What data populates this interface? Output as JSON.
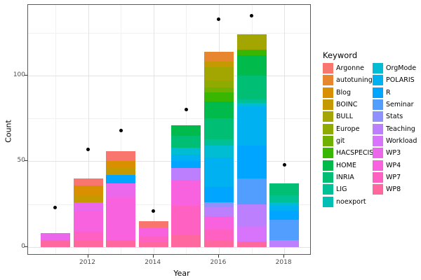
{
  "chart_data": {
    "type": "bar",
    "variant": "stacked-bars-with-points",
    "title": "",
    "xlabel": "Year",
    "ylabel": "Count",
    "legend_title": "Keyword",
    "legend_position": "right",
    "grid": true,
    "categories": [
      2011,
      2012,
      2013,
      2014,
      2015,
      2016,
      2017,
      2018
    ],
    "x_tick_years": [
      2012,
      2014,
      2016,
      2018
    ],
    "y_ticks": [
      0,
      50,
      100
    ],
    "y_minor_ticks": [
      25,
      75,
      125
    ],
    "ylim": [
      0,
      141
    ],
    "bar_totals": [
      8,
      40,
      56,
      15,
      71,
      114,
      124,
      37
    ],
    "points": {
      "name": "count-dots",
      "color": "#000000",
      "values": [
        23,
        57,
        68,
        21,
        80,
        133,
        135,
        48
      ]
    },
    "series": [
      {
        "name": "Argonne",
        "color": "#F8766D",
        "values": [
          0,
          4,
          6,
          4,
          0,
          0,
          0,
          0
        ]
      },
      {
        "name": "autotuning",
        "color": "#E8852F",
        "values": [
          0,
          0,
          0,
          0,
          0,
          6,
          0,
          0
        ]
      },
      {
        "name": "Blog",
        "color": "#D89000",
        "values": [
          0,
          6,
          4,
          0,
          0,
          0,
          0,
          0
        ]
      },
      {
        "name": "BOINC",
        "color": "#C49A00",
        "values": [
          0,
          4,
          4,
          0,
          0,
          3,
          0,
          0
        ]
      },
      {
        "name": "BULL",
        "color": "#A3A500",
        "values": [
          0,
          0,
          0,
          0,
          0,
          8,
          9,
          0
        ]
      },
      {
        "name": "Europe",
        "color": "#8FAA00",
        "values": [
          0,
          0,
          0,
          0,
          0,
          4,
          0,
          0
        ]
      },
      {
        "name": "git",
        "color": "#6FB000",
        "values": [
          0,
          0,
          0,
          0,
          0,
          3,
          0,
          0
        ]
      },
      {
        "name": "HACSPECIS",
        "color": "#39B600",
        "values": [
          0,
          0,
          0,
          0,
          0,
          5,
          3,
          0
        ]
      },
      {
        "name": "HOME",
        "color": "#00BB4B",
        "values": [
          0,
          0,
          0,
          0,
          6,
          10,
          12,
          0
        ]
      },
      {
        "name": "INRIA",
        "color": "#00BF74",
        "values": [
          0,
          0,
          0,
          0,
          7,
          12,
          14,
          7
        ]
      },
      {
        "name": "LIG",
        "color": "#00C096",
        "values": [
          0,
          0,
          0,
          0,
          0,
          4,
          2,
          4
        ]
      },
      {
        "name": "noexport",
        "color": "#00C0B4",
        "values": [
          0,
          0,
          0,
          0,
          0,
          0,
          0,
          0
        ]
      },
      {
        "name": "OrgMode",
        "color": "#00BDD4",
        "values": [
          0,
          0,
          0,
          0,
          4,
          7,
          2,
          2
        ]
      },
      {
        "name": "POLARIS",
        "color": "#00B1F2",
        "values": [
          0,
          0,
          0,
          0,
          4,
          17,
          23,
          3
        ]
      },
      {
        "name": "R",
        "color": "#00A5FF",
        "values": [
          0,
          0,
          5,
          0,
          4,
          9,
          19,
          5
        ]
      },
      {
        "name": "Seminar",
        "color": "#529EFF",
        "values": [
          0,
          0,
          0,
          0,
          0,
          0,
          15,
          12
        ]
      },
      {
        "name": "Stats",
        "color": "#8F91FF",
        "values": [
          0,
          0,
          0,
          0,
          0,
          3,
          0,
          0
        ]
      },
      {
        "name": "Teaching",
        "color": "#BC80FF",
        "values": [
          0,
          0,
          0,
          0,
          7,
          5,
          13,
          4
        ]
      },
      {
        "name": "Workload",
        "color": "#D873FC",
        "values": [
          0,
          0,
          0,
          0,
          0,
          0,
          9,
          0
        ]
      },
      {
        "name": "WP3",
        "color": "#EB67EC",
        "values": [
          4,
          5,
          8,
          0,
          0,
          0,
          0,
          0
        ]
      },
      {
        "name": "WP4",
        "color": "#F862DE",
        "values": [
          0,
          12,
          25,
          5,
          15,
          8,
          0,
          0
        ]
      },
      {
        "name": "WP7",
        "color": "#FF61C2",
        "values": [
          0,
          5,
          0,
          3,
          17,
          6,
          0,
          0
        ]
      },
      {
        "name": "WP8",
        "color": "#FF689E",
        "values": [
          4,
          4,
          4,
          3,
          7,
          4,
          3,
          0
        ]
      }
    ]
  }
}
